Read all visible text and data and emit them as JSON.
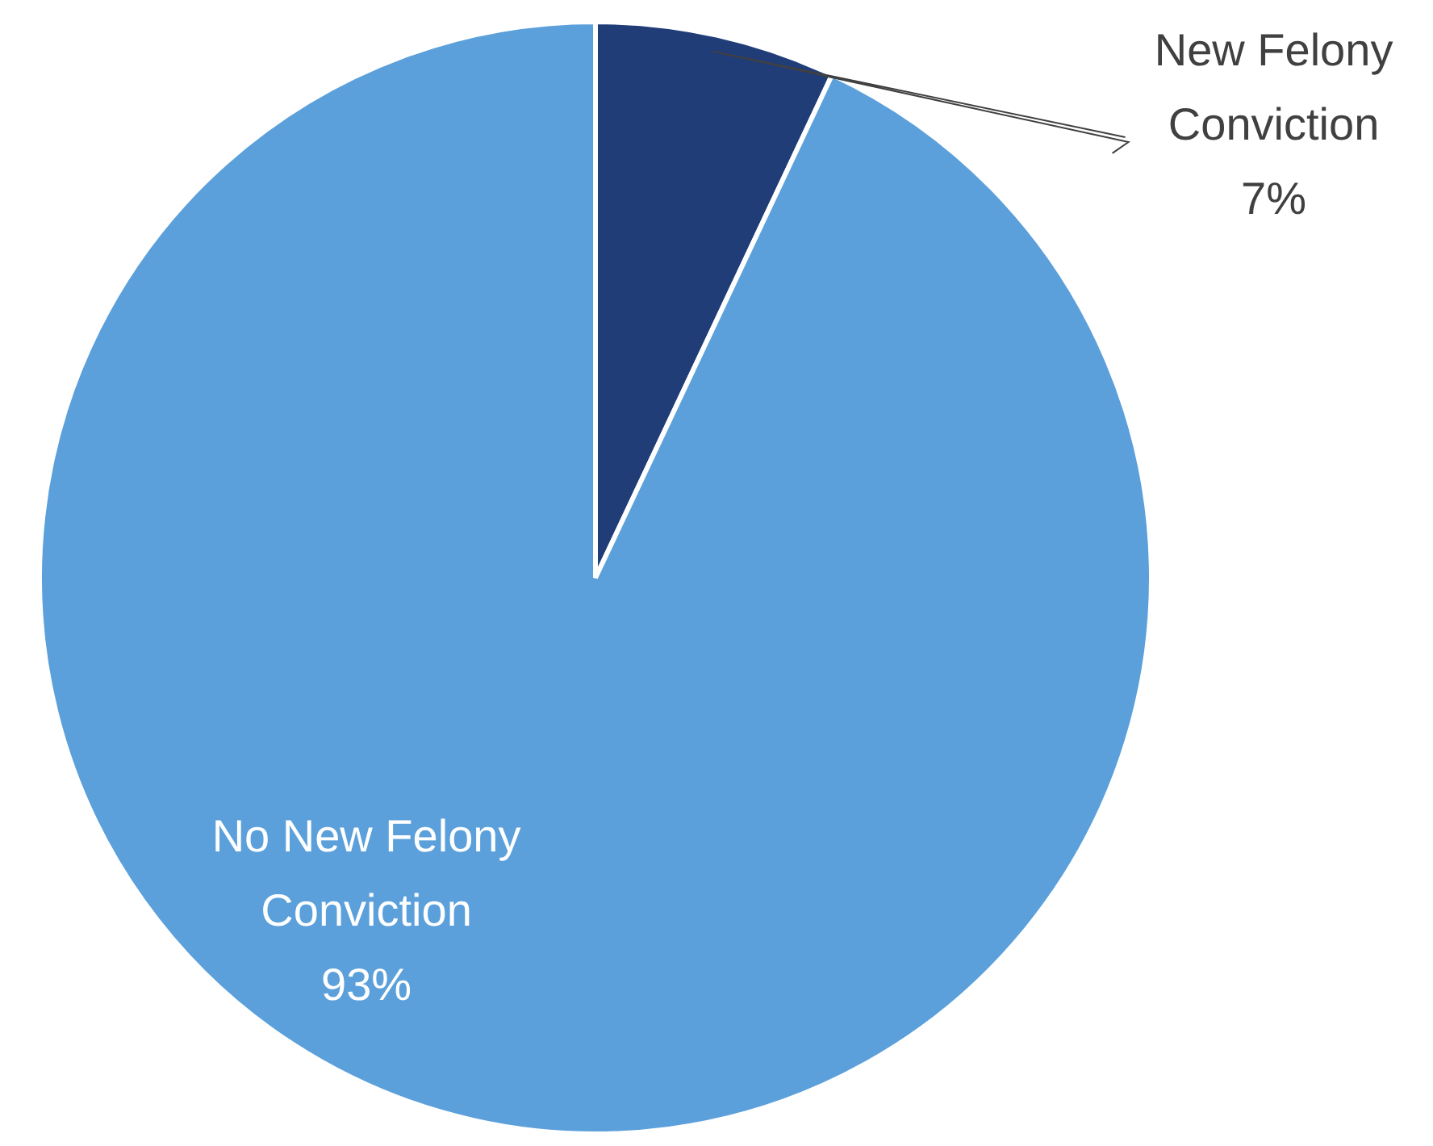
{
  "chart_data": {
    "type": "pie",
    "categories": [
      "New Felony Conviction",
      "No New Felony Conviction"
    ],
    "values": [
      7,
      93
    ],
    "colors": [
      "#203d78",
      "#5ba0db"
    ],
    "value_labels": [
      "7%",
      "93%"
    ],
    "legend": false
  }
}
